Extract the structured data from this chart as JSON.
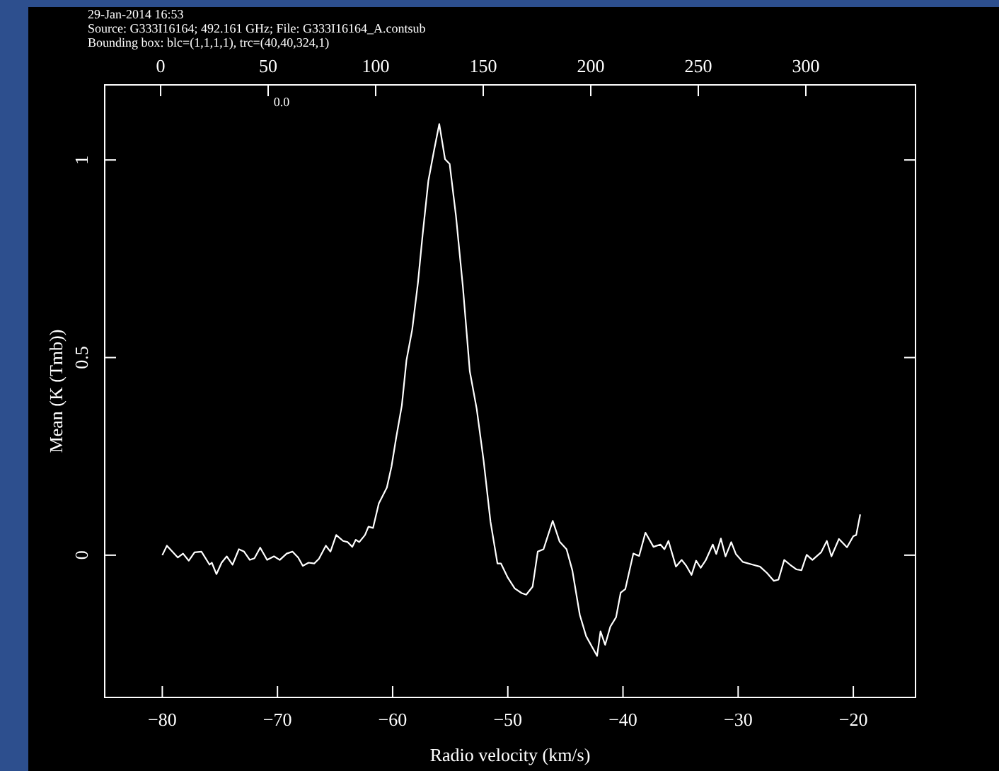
{
  "chart_data": {
    "type": "line",
    "title": "29-Jan-2014 16:53",
    "subtitle": "Source: G333I16164; 492.161 GHz; File: G333I16164_A.contsub",
    "annotations": [
      "Bounding box: blc=(1,1,1,1), trc=(40,40,324,1)",
      "0.0"
    ],
    "xlabel": "Radio velocity (km/s)",
    "ylabel": "Mean (K (Tmb))",
    "xlim": [
      -85,
      -14.6
    ],
    "xticks": [
      -80,
      -70,
      -60,
      -50,
      -40,
      -30,
      -20
    ],
    "x2lim": [
      -26,
      351
    ],
    "x2ticks": [
      0,
      50,
      100,
      150,
      200,
      250,
      300
    ],
    "ylim": [
      -0.36,
      1.19
    ],
    "yticks": [
      0,
      0.5,
      1
    ],
    "grid": false,
    "tick_labels": "xy",
    "marker": "none",
    "line_style": "solid",
    "series": [
      {
        "color": "#ffffff",
        "x": [
          -80,
          -79.6,
          -78.65,
          -78.2,
          -77.7,
          -77.2,
          -76.6,
          -75.9,
          -75.7,
          -75.3,
          -74.85,
          -74.4,
          -73.9,
          -73.35,
          -72.9,
          -72.4,
          -72,
          -71.5,
          -70.9,
          -70.3,
          -69.8,
          -69.2,
          -68.7,
          -68.2,
          -67.8,
          -67.3,
          -66.8,
          -66.4,
          -65.8,
          -65.4,
          -64.9,
          -64.3,
          -63.9,
          -63.5,
          -63.2,
          -62.9,
          -62.4,
          -62.1,
          -61.7,
          -61.2,
          -60.5,
          -60.1,
          -59.7,
          -59.2,
          -58.8,
          -58.3,
          -57.8,
          -57.4,
          -56.9,
          -56.4,
          -55.95,
          -55.45,
          -55.05,
          -54.5,
          -53.9,
          -53.3,
          -52.7,
          -52.1,
          -51.5,
          -50.9,
          -50.6,
          -50,
          -49.4,
          -48.8,
          -48.4,
          -47.85,
          -47.4,
          -46.9,
          -46.1,
          -45.5,
          -44.9,
          -44.4,
          -43.75,
          -43.2,
          -42.25,
          -41.95,
          -41.55,
          -41.1,
          -40.6,
          -40.2,
          -39.8,
          -39.1,
          -38.6,
          -38.05,
          -37.35,
          -36.75,
          -36.4,
          -36.05,
          -35.4,
          -34.9,
          -34.5,
          -34.05,
          -33.65,
          -33.25,
          -32.8,
          -32.2,
          -31.9,
          -31.5,
          -31.1,
          -30.6,
          -30.2,
          -29.6,
          -28.75,
          -28.1,
          -27.5,
          -26.9,
          -26.5,
          -26,
          -25.5,
          -24.95,
          -24.5,
          -24.05,
          -23.55,
          -22.8,
          -22.3,
          -21.9,
          -21.25,
          -20.55,
          -20,
          -19.75,
          -19.4
        ],
        "values": [
          0,
          0.024,
          -0.006,
          0.004,
          -0.014,
          0.007,
          0.009,
          -0.024,
          -0.019,
          -0.048,
          -0.019,
          -0.003,
          -0.024,
          0.015,
          0.009,
          -0.012,
          -0.008,
          0.019,
          -0.012,
          -0.003,
          -0.012,
          0.004,
          0.009,
          -0.006,
          -0.027,
          -0.019,
          -0.021,
          -0.009,
          0.024,
          0.009,
          0.051,
          0.036,
          0.033,
          0.021,
          0.039,
          0.033,
          0.051,
          0.072,
          0.069,
          0.131,
          0.171,
          0.224,
          0.296,
          0.379,
          0.493,
          0.571,
          0.69,
          0.81,
          0.947,
          1.025,
          1.091,
          1.002,
          0.99,
          0.858,
          0.679,
          0.465,
          0.37,
          0.239,
          0.084,
          -0.021,
          -0.021,
          -0.057,
          -0.084,
          -0.096,
          -0.1,
          -0.08,
          0.009,
          0.015,
          0.087,
          0.034,
          0.015,
          -0.038,
          -0.151,
          -0.205,
          -0.255,
          -0.193,
          -0.227,
          -0.181,
          -0.157,
          -0.095,
          -0.086,
          0.004,
          -0.002,
          0.057,
          0.021,
          0.027,
          0.015,
          0.036,
          -0.029,
          -0.012,
          -0.027,
          -0.05,
          -0.014,
          -0.032,
          -0.012,
          0.027,
          0.003,
          0.042,
          -0.003,
          0.033,
          0.003,
          -0.017,
          -0.024,
          -0.029,
          -0.045,
          -0.065,
          -0.062,
          -0.012,
          -0.024,
          -0.036,
          -0.038,
          0.001,
          -0.012,
          0.007,
          0.036,
          -0.003,
          0.041,
          0.02,
          0.048,
          0.051,
          0.103
        ]
      }
    ]
  }
}
